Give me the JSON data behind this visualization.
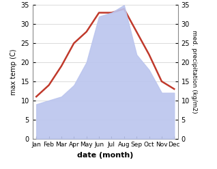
{
  "months": [
    "Jan",
    "Feb",
    "Mar",
    "Apr",
    "May",
    "Jun",
    "Jul",
    "Aug",
    "Sep",
    "Oct",
    "Nov",
    "Dec"
  ],
  "temperature": [
    11,
    14,
    19,
    25,
    28,
    33,
    33,
    34,
    28,
    22,
    15,
    13
  ],
  "precipitation": [
    9,
    10,
    11,
    14,
    20,
    32,
    33,
    35,
    22,
    18,
    12,
    12
  ],
  "temp_color": "#c0392b",
  "precip_color": "#bbc5ee",
  "temp_ylim": [
    0,
    35
  ],
  "precip_ylim": [
    0,
    35
  ],
  "xlabel": "date (month)",
  "ylabel_left": "max temp (C)",
  "ylabel_right": "med. precipitation (kg/m2)",
  "background_color": "#ffffff",
  "grid_color": "#cccccc",
  "yticks": [
    0,
    5,
    10,
    15,
    20,
    25,
    30,
    35
  ]
}
